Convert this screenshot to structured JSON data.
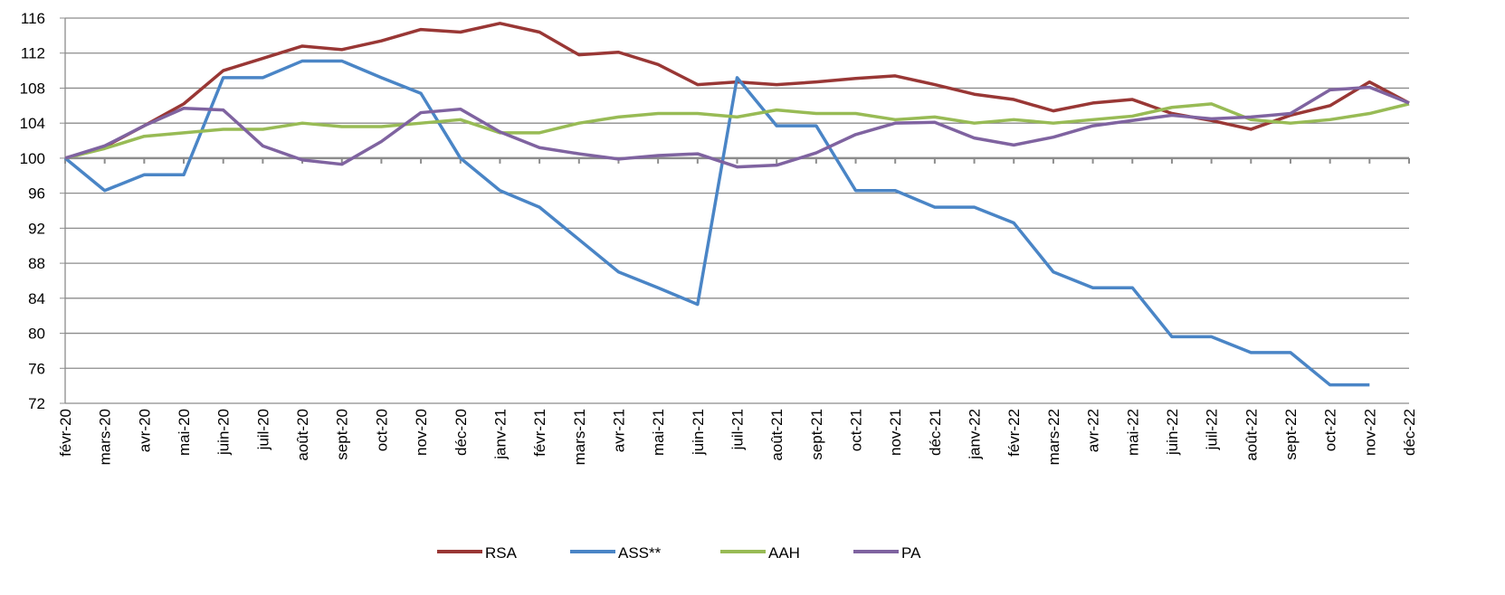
{
  "chart_data": {
    "type": "line",
    "categories": [
      "févr-20",
      "mars-20",
      "avr-20",
      "mai-20",
      "juin-20",
      "juil-20",
      "août-20",
      "sept-20",
      "oct-20",
      "nov-20",
      "déc-20",
      "janv-21",
      "févr-21",
      "mars-21",
      "avr-21",
      "mai-21",
      "juin-21",
      "juil-21",
      "août-21",
      "sept-21",
      "oct-21",
      "nov-21",
      "déc-21",
      "janv-22",
      "févr-22",
      "mars-22",
      "avr-22",
      "mai-22",
      "juin-22",
      "juil-22",
      "août-22",
      "sept-22",
      "oct-22",
      "nov-22",
      "déc-22"
    ],
    "series": [
      {
        "name": "RSA",
        "color": "#993735",
        "values": [
          100,
          101.3,
          103.7,
          106.2,
          110,
          111.4,
          112.8,
          112.4,
          113.4,
          114.7,
          114.4,
          115.4,
          114.4,
          111.8,
          112.1,
          110.7,
          108.4,
          108.7,
          108.4,
          108.7,
          109.1,
          109.4,
          108.4,
          107.3,
          106.7,
          105.4,
          106.3,
          106.7,
          105.1,
          104.3,
          103.3,
          104.9,
          106,
          108.7,
          106.3
        ]
      },
      {
        "name": "ASS**",
        "color": "#4a85c6",
        "values": [
          100,
          96.3,
          98.1,
          98.1,
          109.2,
          109.2,
          111.1,
          111.1,
          109.2,
          107.4,
          100,
          96.3,
          94.4,
          90.7,
          87,
          85.2,
          83.3,
          109.2,
          103.7,
          103.7,
          96.3,
          96.3,
          94.4,
          94.4,
          92.6,
          87,
          85.2,
          85.2,
          79.6,
          79.6,
          77.8,
          77.8,
          74.1,
          74.1,
          null
        ]
      },
      {
        "name": "AAH",
        "color": "#98bb55",
        "values": [
          100,
          101.1,
          102.5,
          102.9,
          103.3,
          103.3,
          104,
          103.6,
          103.6,
          104,
          104.4,
          102.9,
          102.9,
          104,
          104.7,
          105.1,
          105.1,
          104.7,
          105.5,
          105.1,
          105.1,
          104.4,
          104.7,
          104,
          104.4,
          104,
          104.4,
          104.8,
          105.8,
          106.2,
          104.4,
          104,
          104.4,
          105.1,
          106.2
        ]
      },
      {
        "name": "PA",
        "color": "#7f63a0",
        "values": [
          100,
          101.4,
          103.7,
          105.7,
          105.5,
          101.4,
          99.8,
          99.3,
          101.9,
          105.2,
          105.6,
          103,
          101.2,
          100.5,
          99.9,
          100.3,
          100.5,
          99,
          99.2,
          100.6,
          102.7,
          104,
          104.1,
          102.3,
          101.5,
          102.4,
          103.7,
          104.3,
          104.9,
          104.5,
          104.7,
          105.1,
          107.8,
          108.1,
          106.3
        ]
      }
    ],
    "ylim": [
      72,
      116
    ],
    "yticks": [
      72,
      76,
      80,
      84,
      88,
      92,
      96,
      100,
      104,
      108,
      112,
      116
    ],
    "grid": true,
    "legend": "bottom"
  }
}
